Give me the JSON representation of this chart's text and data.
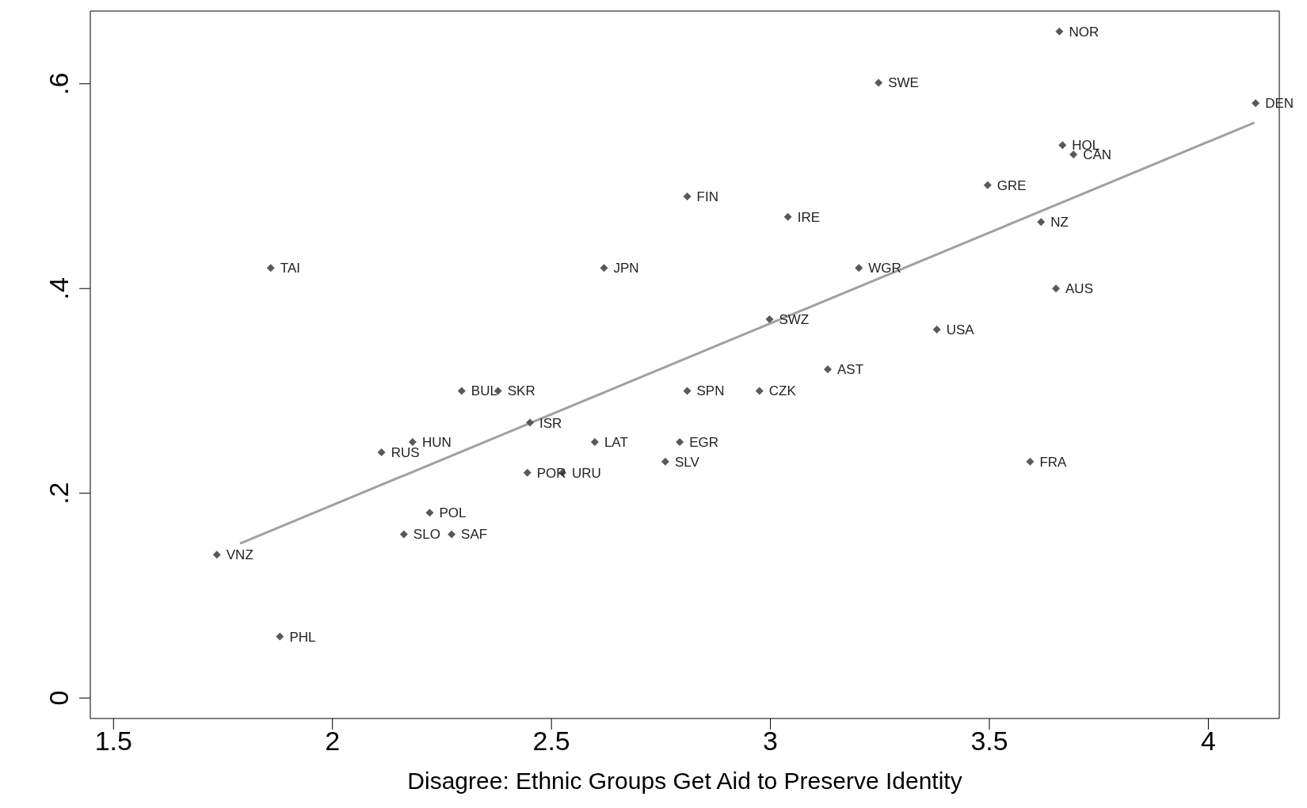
{
  "chart_data": {
    "type": "scatter",
    "xlabel": "Disagree: Ethnic Groups Get Aid to Preserve Identity",
    "xlim": [
      1.447,
      4.162
    ],
    "ylim": [
      -0.02,
      0.671
    ],
    "xticks": [
      1.5,
      2,
      2.5,
      3,
      3.5,
      4
    ],
    "yticks": [
      {
        "value": 0,
        "label": "0"
      },
      {
        "value": 0.2,
        "label": ".2"
      },
      {
        "value": 0.4,
        "label": ".4"
      },
      {
        "value": 0.6,
        "label": ".6"
      }
    ],
    "marker": "diamond",
    "series": [
      {
        "color": "#595959",
        "x": [
          3.66,
          3.247,
          4.108,
          3.667,
          3.692,
          3.496,
          2.81,
          3.04,
          3.618,
          1.859,
          2.62,
          3.202,
          3.652,
          2.998,
          3.38,
          3.131,
          2.295,
          2.378,
          2.81,
          2.975,
          2.451,
          2.183,
          2.599,
          2.793,
          2.112,
          2.76,
          3.593,
          2.445,
          2.525,
          2.222,
          2.163,
          2.272,
          1.736,
          1.88
        ],
        "values": [
          0.651,
          0.601,
          0.581,
          0.54,
          0.531,
          0.501,
          0.49,
          0.47,
          0.465,
          0.42,
          0.42,
          0.42,
          0.4,
          0.37,
          0.36,
          0.321,
          0.3,
          0.3,
          0.3,
          0.3,
          0.269,
          0.25,
          0.25,
          0.25,
          0.24,
          0.231,
          0.231,
          0.22,
          0.22,
          0.181,
          0.16,
          0.16,
          0.14,
          0.06
        ],
        "value_labels": [
          "NOR",
          "SWE",
          "DEN",
          "HOL",
          "CAN",
          "GRE",
          "FIN",
          "IRE",
          "NZ",
          "TAI",
          "JPN",
          "WGR",
          "AUS",
          "SWZ",
          "USA",
          "AST",
          "BUL",
          "SKR",
          "SPN",
          "CZK",
          "ISR",
          "HUN",
          "LAT",
          "EGR",
          "RUS",
          "SLV",
          "FRA",
          "POR",
          "URU",
          "POL",
          "SLO",
          "SAF",
          "VNZ",
          "PHL"
        ]
      },
      {
        "type": "line",
        "color": "#a0a0a0",
        "line_style": "solid",
        "marker": "none",
        "x": [
          1.789,
          4.105
        ],
        "values": [
          0.151,
          0.562
        ]
      }
    ]
  }
}
